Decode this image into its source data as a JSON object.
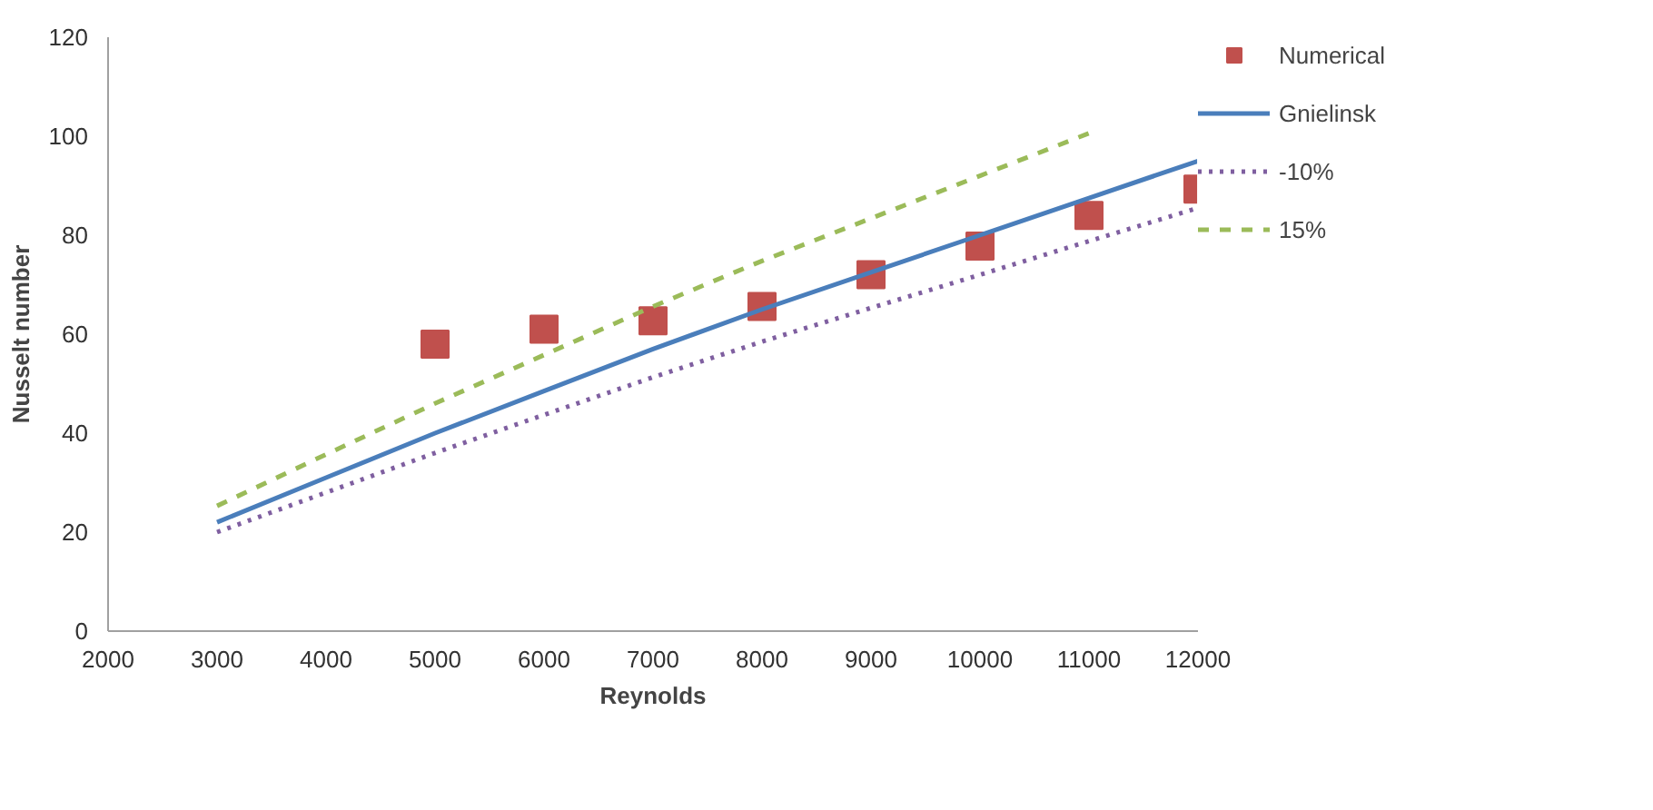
{
  "chart_data": {
    "type": "line",
    "xlabel": "Reynolds",
    "ylabel": "Nusselt number",
    "xlim": [
      2000,
      12000
    ],
    "xticks": [
      2000,
      3000,
      4000,
      5000,
      6000,
      7000,
      8000,
      9000,
      10000,
      11000,
      12000
    ],
    "ylim": [
      0,
      120
    ],
    "yticks": [
      0,
      20,
      40,
      60,
      80,
      100,
      120
    ],
    "grid": false,
    "legend": "right",
    "series": [
      {
        "name": "Numerical",
        "type": "scatter",
        "marker": "square",
        "color": "#c0504d",
        "x": [
          5000,
          6000,
          7000,
          8000,
          9000,
          10000,
          11000,
          12000
        ],
        "values": [
          58,
          61,
          62.7,
          65.6,
          72,
          77.8,
          84,
          89.3
        ]
      },
      {
        "name": "Gnielinsk",
        "line_style": "solid",
        "color": "#4a7ebb",
        "x": [
          3000,
          4000,
          5000,
          6000,
          7000,
          8000,
          9000,
          10000,
          11000,
          12000
        ],
        "values": [
          22,
          31,
          40,
          48.5,
          57,
          65,
          72.5,
          80,
          87.5,
          95
        ]
      },
      {
        "name": "-10%",
        "line_style": "dotted",
        "color": "#7f5fa0",
        "x": [
          3000,
          4000,
          5000,
          6000,
          7000,
          8000,
          9000,
          10000,
          11000,
          12000
        ],
        "values": [
          20,
          28,
          36,
          43.7,
          51.3,
          58.5,
          65.3,
          72,
          78.8,
          85.5
        ]
      },
      {
        "name": "15%",
        "line_style": "dashed",
        "color": "#9bbb59",
        "x": [
          3000,
          4000,
          5000,
          6000,
          7000,
          8000,
          9000,
          10000,
          11000
        ],
        "values": [
          25.3,
          35.7,
          46,
          55.8,
          65.6,
          74.8,
          83.4,
          92,
          100.6
        ]
      }
    ]
  }
}
